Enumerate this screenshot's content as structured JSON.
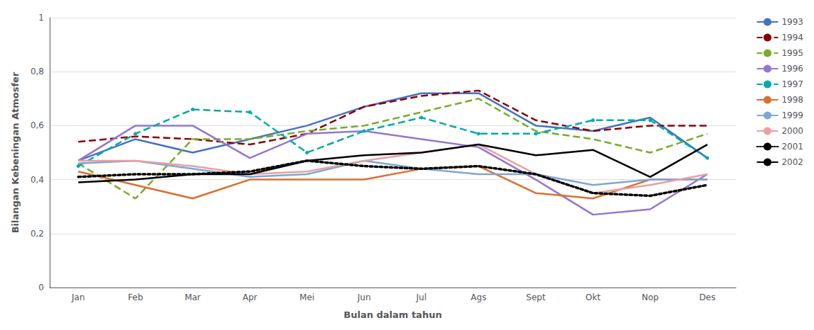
{
  "chart_data": {
    "type": "line",
    "xlabel": "Bulan dalam tahun",
    "ylabel": "Bilangan Kebeningan Atmosfer",
    "categories": [
      "Jan",
      "Feb",
      "Mar",
      "Apr",
      "Mei",
      "Jun",
      "Jul",
      "Ags",
      "Sept",
      "Okt",
      "Nop",
      "Des"
    ],
    "series": [
      {
        "name": "1993",
        "color": "#4472C4",
        "line_style": "solid",
        "values": [
          0.47,
          0.55,
          0.5,
          0.55,
          0.6,
          0.67,
          0.72,
          0.72,
          0.6,
          0.58,
          0.63,
          0.48
        ]
      },
      {
        "name": "1994",
        "color": "#8B0000",
        "line_style": "dashed",
        "values": [
          0.54,
          0.56,
          0.55,
          0.53,
          0.57,
          0.67,
          0.71,
          0.73,
          0.62,
          0.58,
          0.6,
          0.6
        ]
      },
      {
        "name": "1995",
        "color": "#7AAB28",
        "line_style": "dashed",
        "values": [
          0.46,
          0.33,
          0.55,
          0.55,
          0.58,
          0.6,
          0.65,
          0.7,
          0.58,
          0.55,
          0.5,
          0.57
        ]
      },
      {
        "name": "1996",
        "color": "#9575CD",
        "line_style": "solid",
        "values": [
          0.47,
          0.6,
          0.6,
          0.48,
          0.57,
          0.58,
          0.55,
          0.52,
          0.4,
          0.27,
          0.29,
          0.42
        ]
      },
      {
        "name": "1997",
        "color": "#00AAAA",
        "line_style": "dashed",
        "marker": "circle",
        "values": [
          0.45,
          0.57,
          0.66,
          0.65,
          0.5,
          0.58,
          0.63,
          0.57,
          0.57,
          0.62,
          0.62,
          0.48
        ]
      },
      {
        "name": "1998",
        "color": "#D87030",
        "line_style": "solid",
        "values": [
          0.43,
          0.38,
          0.33,
          0.4,
          0.4,
          0.4,
          0.44,
          0.45,
          0.35,
          0.33,
          0.4,
          0.4
        ]
      },
      {
        "name": "1999",
        "color": "#7EA6D8",
        "line_style": "solid",
        "values": [
          0.46,
          0.47,
          0.44,
          0.41,
          0.42,
          0.47,
          0.44,
          0.42,
          0.42,
          0.38,
          0.4,
          0.4
        ]
      },
      {
        "name": "2000",
        "color": "#E8A0A0",
        "line_style": "solid",
        "values": [
          0.47,
          0.47,
          0.45,
          0.42,
          0.43,
          0.47,
          0.5,
          0.53,
          0.42,
          0.35,
          0.38,
          0.42
        ]
      },
      {
        "name": "2001",
        "color": "#000000",
        "line_style": "dotted",
        "values": [
          0.41,
          0.42,
          0.42,
          0.43,
          0.47,
          0.45,
          0.44,
          0.45,
          0.42,
          0.35,
          0.34,
          0.38
        ]
      },
      {
        "name": "2002",
        "color": "#000000",
        "line_style": "solid",
        "values": [
          0.39,
          0.4,
          0.42,
          0.42,
          0.47,
          0.49,
          0.5,
          0.53,
          0.49,
          0.51,
          0.41,
          0.53
        ]
      }
    ],
    "ylim": [
      0,
      1.0
    ],
    "yticks": [
      0,
      {
        "value": 0.2,
        "label": "0,2"
      },
      {
        "value": 0.4,
        "label": "0,4"
      },
      {
        "value": 0.6,
        "label": "0,6"
      },
      {
        "value": 0.8,
        "label": "0,8"
      },
      1
    ],
    "grid": true,
    "legend": "right"
  }
}
